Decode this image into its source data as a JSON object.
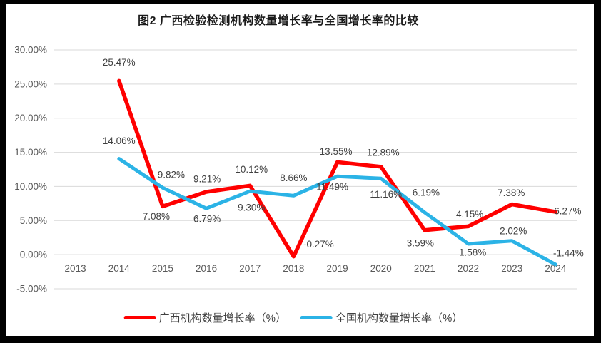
{
  "title": "图2 广西检验检测机构数量增长率与全国增长率的比较",
  "colors": {
    "guangxi_line": "#ff0000",
    "national_line": "#2bb3e6",
    "gridline": "#d9d9d9",
    "axis_text": "#595959",
    "data_label_text": "#404040",
    "frame_border": "#000000",
    "background": "#ffffff"
  },
  "chart_data": {
    "type": "line",
    "title": "图2 广西检验检测机构数量增长率与全国增长率的比较",
    "categories": [
      "2013",
      "2014",
      "2015",
      "2016",
      "2017",
      "2018",
      "2019",
      "2020",
      "2021",
      "2022",
      "2023",
      "2024"
    ],
    "series": [
      {
        "name": "广西机构数量增长率（%）",
        "color": "#ff0000",
        "values": [
          null,
          25.47,
          7.08,
          9.21,
          10.12,
          -0.27,
          13.55,
          12.89,
          3.59,
          4.15,
          7.38,
          6.27
        ],
        "labels": [
          "",
          "25.47%",
          "7.08%",
          "9.21%",
          "10.12%",
          "-0.27%",
          "13.55%",
          "12.89%",
          "3.59%",
          "4.15%",
          "7.38%",
          "6.27%"
        ],
        "label_offsets": [
          [
            0,
            0
          ],
          [
            0,
            -26
          ],
          [
            -9,
            14
          ],
          [
            1,
            -18
          ],
          [
            2,
            -23
          ],
          [
            35,
            -17
          ],
          [
            -2,
            -15
          ],
          [
            3,
            -20
          ],
          [
            -6,
            18
          ],
          [
            2,
            -17
          ],
          [
            -1,
            -16
          ],
          [
            17,
            -1
          ]
        ]
      },
      {
        "name": "全国机构数量增长率（%）",
        "color": "#2bb3e6",
        "values": [
          null,
          14.06,
          9.82,
          6.79,
          9.3,
          8.66,
          11.49,
          11.16,
          6.19,
          1.58,
          2.02,
          -1.44
        ],
        "labels": [
          "",
          "14.06%",
          "9.82%",
          "6.79%",
          "9.30%",
          "8.66%",
          "11.49%",
          "11.16%",
          "6.19%",
          "1.58%",
          "2.02%",
          "-1.44%"
        ],
        "label_offsets": [
          [
            0,
            0
          ],
          [
            0,
            -25
          ],
          [
            12,
            -18
          ],
          [
            1,
            15
          ],
          [
            2,
            23
          ],
          [
            0,
            -25
          ],
          [
            -7,
            15
          ],
          [
            7,
            22
          ],
          [
            2,
            -28
          ],
          [
            6,
            12
          ],
          [
            2,
            -14
          ],
          [
            18,
            -16
          ]
        ]
      }
    ],
    "yticks": [
      {
        "value": 30,
        "label": "30.00%"
      },
      {
        "value": 25,
        "label": "25.00%"
      },
      {
        "value": 20,
        "label": "20.00%"
      },
      {
        "value": 15,
        "label": "15.00%"
      },
      {
        "value": 10,
        "label": "10.00%"
      },
      {
        "value": 5,
        "label": "5.00%"
      },
      {
        "value": 0,
        "label": "0.00%"
      },
      {
        "value": -5,
        "label": "-5.00%"
      }
    ],
    "ylim": [
      -5,
      30
    ],
    "xlabel": "",
    "ylabel": "",
    "grid": true,
    "legend_position": "bottom"
  },
  "legend": {
    "items": [
      {
        "label": "广西机构数量增长率（%）",
        "color": "#ff0000"
      },
      {
        "label": "全国机构数量增长率（%）",
        "color": "#2bb3e6"
      }
    ]
  }
}
